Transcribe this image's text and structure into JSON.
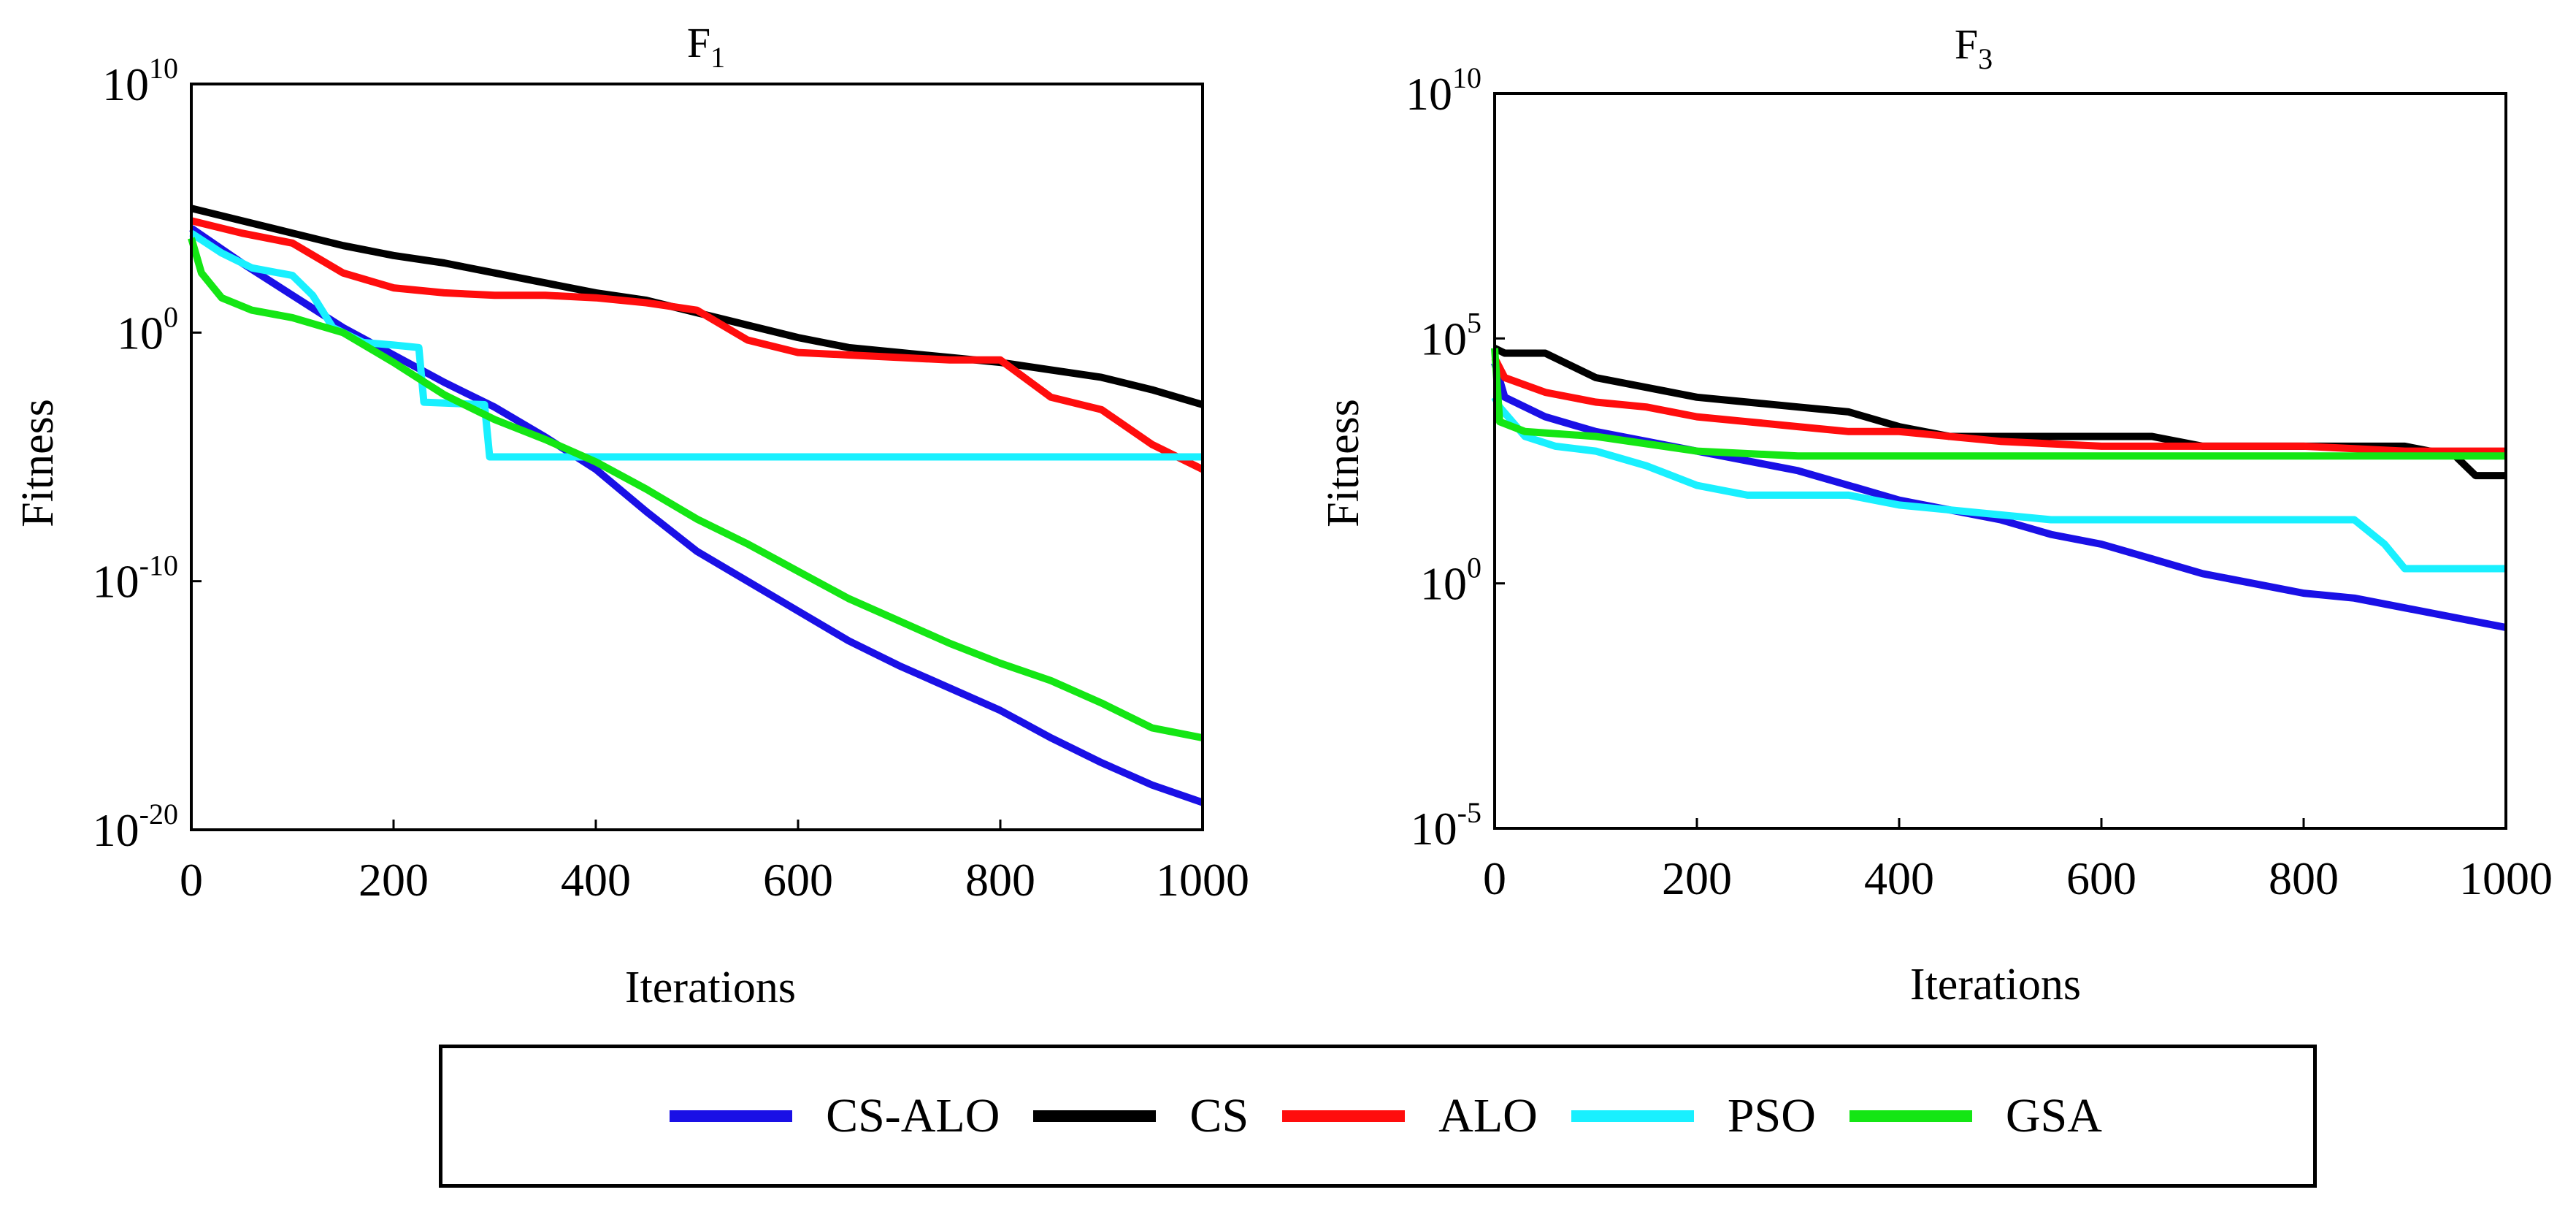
{
  "figure": {
    "legend": [
      {
        "name": "CS-ALO",
        "color": "#1a10e6"
      },
      {
        "name": "CS",
        "color": "#000000"
      },
      {
        "name": "ALO",
        "color": "#ff0d0d"
      },
      {
        "name": "PSO",
        "color": "#19f0ff"
      },
      {
        "name": "GSA",
        "color": "#14e614"
      }
    ]
  },
  "chart_data": [
    {
      "type": "line",
      "title_base": "F",
      "title_sub": "1",
      "xlabel": "Iterations",
      "ylabel": "Fitness",
      "yscale": "log",
      "xlim": [
        0,
        1000
      ],
      "ylim_exp": [
        -20,
        10
      ],
      "xticks": [
        0,
        200,
        400,
        600,
        800,
        1000
      ],
      "yticks_exp": [
        -20,
        -10,
        0,
        10
      ],
      "ytick_base": "10",
      "series": [
        {
          "name": "CS-ALO",
          "x": [
            0,
            50,
            100,
            150,
            200,
            250,
            300,
            350,
            400,
            450,
            500,
            550,
            600,
            650,
            700,
            750,
            800,
            850,
            900,
            950,
            1000
          ],
          "log10y": [
            4.2,
            2.8,
            1.5,
            0.2,
            -0.9,
            -2.0,
            -3.0,
            -4.2,
            -5.5,
            -7.2,
            -8.8,
            -10.0,
            -11.2,
            -12.4,
            -13.4,
            -14.3,
            -15.2,
            -16.3,
            -17.3,
            -18.2,
            -18.9
          ]
        },
        {
          "name": "CS",
          "x": [
            0,
            50,
            100,
            150,
            200,
            250,
            300,
            350,
            400,
            450,
            500,
            550,
            600,
            650,
            700,
            750,
            800,
            850,
            900,
            950,
            1000
          ],
          "log10y": [
            5.0,
            4.5,
            4.0,
            3.5,
            3.1,
            2.8,
            2.4,
            2.0,
            1.6,
            1.3,
            0.8,
            0.3,
            -0.2,
            -0.6,
            -0.8,
            -1.0,
            -1.2,
            -1.5,
            -1.8,
            -2.3,
            -2.9
          ]
        },
        {
          "name": "ALO",
          "x": [
            0,
            50,
            100,
            150,
            200,
            250,
            300,
            350,
            400,
            450,
            500,
            550,
            600,
            650,
            700,
            750,
            800,
            850,
            900,
            950,
            1000
          ],
          "log10y": [
            4.5,
            4.0,
            3.6,
            2.4,
            1.8,
            1.6,
            1.5,
            1.5,
            1.4,
            1.2,
            0.9,
            -0.3,
            -0.8,
            -0.9,
            -1.0,
            -1.1,
            -1.1,
            -2.6,
            -3.1,
            -4.5,
            -5.5
          ]
        },
        {
          "name": "PSO",
          "x": [
            0,
            30,
            60,
            100,
            120,
            140,
            170,
            200,
            225,
            230,
            290,
            295,
            400,
            600,
            800,
            1000
          ],
          "log10y": [
            4.0,
            3.2,
            2.6,
            2.3,
            1.5,
            0.2,
            -0.4,
            -0.5,
            -0.6,
            -2.8,
            -2.9,
            -5.0,
            -5.0,
            -5.0,
            -5.0,
            -5.0
          ]
        },
        {
          "name": "GSA",
          "x": [
            0,
            10,
            30,
            60,
            100,
            150,
            200,
            250,
            300,
            350,
            400,
            450,
            500,
            550,
            600,
            650,
            700,
            750,
            800,
            850,
            900,
            950,
            1000
          ],
          "log10y": [
            3.8,
            2.4,
            1.4,
            0.9,
            0.6,
            0.0,
            -1.2,
            -2.5,
            -3.5,
            -4.3,
            -5.2,
            -6.3,
            -7.5,
            -8.5,
            -9.6,
            -10.7,
            -11.6,
            -12.5,
            -13.3,
            -14.0,
            -14.9,
            -15.9,
            -16.3
          ]
        }
      ]
    },
    {
      "type": "line",
      "title_base": "F",
      "title_sub": "3",
      "xlabel": "Iterations",
      "ylabel": "Fitness",
      "yscale": "log",
      "xlim": [
        0,
        1000
      ],
      "ylim_exp": [
        -5,
        10
      ],
      "xticks": [
        0,
        200,
        400,
        600,
        800,
        1000
      ],
      "yticks_exp": [
        -5,
        0,
        5,
        10
      ],
      "ytick_base": "10",
      "series": [
        {
          "name": "CS-ALO",
          "x": [
            0,
            10,
            50,
            100,
            150,
            200,
            250,
            300,
            350,
            400,
            450,
            500,
            550,
            600,
            650,
            700,
            750,
            800,
            850,
            900,
            950,
            1000
          ],
          "log10y": [
            4.5,
            3.8,
            3.4,
            3.1,
            2.9,
            2.7,
            2.5,
            2.3,
            2.0,
            1.7,
            1.5,
            1.3,
            1.0,
            0.8,
            0.5,
            0.2,
            0.0,
            -0.2,
            -0.3,
            -0.5,
            -0.7,
            -0.9
          ]
        },
        {
          "name": "CS",
          "x": [
            0,
            10,
            50,
            100,
            150,
            200,
            250,
            300,
            350,
            400,
            450,
            500,
            550,
            600,
            650,
            700,
            750,
            800,
            850,
            900,
            950,
            970,
            1000
          ],
          "log10y": [
            4.8,
            4.7,
            4.7,
            4.2,
            4.0,
            3.8,
            3.7,
            3.6,
            3.5,
            3.2,
            3.0,
            3.0,
            3.0,
            3.0,
            3.0,
            2.8,
            2.8,
            2.8,
            2.8,
            2.8,
            2.6,
            2.2,
            2.2
          ]
        },
        {
          "name": "ALO",
          "x": [
            0,
            10,
            50,
            100,
            150,
            200,
            250,
            300,
            350,
            400,
            450,
            500,
            600,
            700,
            800,
            900,
            1000
          ],
          "log10y": [
            4.6,
            4.2,
            3.9,
            3.7,
            3.6,
            3.4,
            3.3,
            3.2,
            3.1,
            3.1,
            3.0,
            2.9,
            2.8,
            2.8,
            2.8,
            2.7,
            2.7
          ]
        },
        {
          "name": "PSO",
          "x": [
            0,
            5,
            30,
            60,
            100,
            150,
            200,
            250,
            300,
            350,
            400,
            450,
            500,
            550,
            600,
            650,
            700,
            750,
            800,
            850,
            880,
            900,
            950,
            1000
          ],
          "log10y": [
            3.8,
            3.6,
            3.0,
            2.8,
            2.7,
            2.4,
            2.0,
            1.8,
            1.8,
            1.8,
            1.6,
            1.5,
            1.4,
            1.3,
            1.3,
            1.3,
            1.3,
            1.3,
            1.3,
            1.3,
            0.8,
            0.3,
            0.3,
            0.3
          ]
        },
        {
          "name": "GSA",
          "x": [
            0,
            5,
            30,
            100,
            200,
            300,
            400,
            500,
            600,
            700,
            800,
            900,
            1000
          ],
          "log10y": [
            4.8,
            3.3,
            3.1,
            3.0,
            2.7,
            2.6,
            2.6,
            2.6,
            2.6,
            2.6,
            2.6,
            2.6,
            2.6
          ]
        }
      ]
    }
  ]
}
